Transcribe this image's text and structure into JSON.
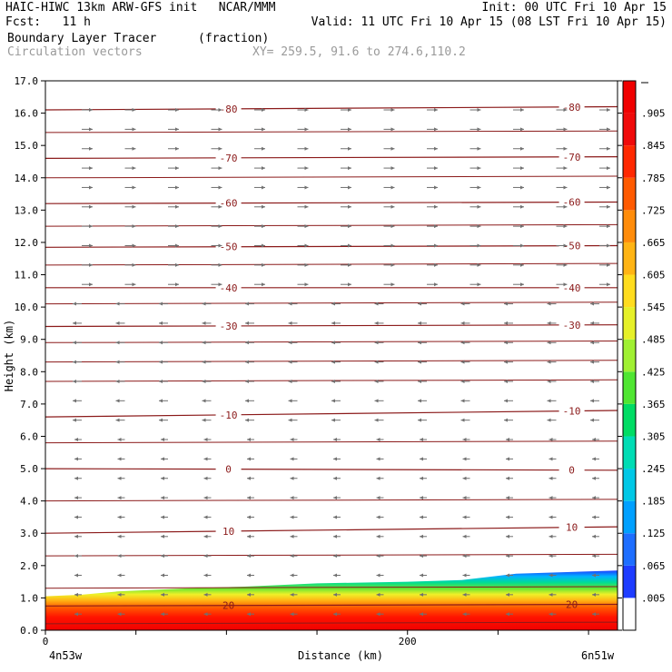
{
  "header": {
    "title": "HAIC-HIWC 13km ARW-GFS init   NCAR/MMM",
    "init": "Init: 00 UTC Fri 10 Apr 15",
    "fcst": "Fcst:   11 h",
    "valid": "Valid: 11 UTC Fri 10 Apr 15 (08 LST Fri 10 Apr 15)",
    "field": "Boundary Layer Tracer",
    "units": "(fraction)",
    "vectors": "Circulation vectors",
    "xy": "XY= 259.5, 91.6 to 274.6,110.2"
  },
  "chart_data": {
    "type": "heatmap",
    "title": "Boundary Layer Tracer",
    "units": "(fraction)",
    "xlabel": "Distance (km)",
    "ylabel": "Height (km)",
    "xlim": [
      0,
      316
    ],
    "ylim": [
      0,
      17
    ],
    "yticks": [
      "0.0",
      "1.0",
      "2.0",
      "3.0",
      "4.0",
      "5.0",
      "6.0",
      "7.0",
      "8.0",
      "9.0",
      "10.0",
      "11.0",
      "12.0",
      "13.0",
      "14.0",
      "15.0",
      "16.0",
      "17.0"
    ],
    "xticks": [
      {
        "value": 0,
        "label": "0"
      },
      {
        "value": 200,
        "label": "200"
      }
    ],
    "x_end_labels": [
      "4n53w",
      "6n51w"
    ],
    "colorbar": {
      "labels": [
        ".005",
        ".065",
        ".125",
        ".185",
        ".245",
        ".305",
        ".365",
        ".425",
        ".485",
        ".545",
        ".605",
        ".665",
        ".725",
        ".785",
        ".845",
        ".905"
      ],
      "colors": [
        "#ffffff",
        "#1e3cff",
        "#1e6eff",
        "#00a0ff",
        "#00c8e6",
        "#00dcb4",
        "#00dc64",
        "#50e632",
        "#a0f032",
        "#e6f028",
        "#ffdc1e",
        "#ffb414",
        "#ff8c0a",
        "#ff5a00",
        "#ff2800",
        "#f00a0a",
        "#f00000"
      ]
    },
    "tracer_top_km": [
      {
        "x": 0,
        "y": 1.05
      },
      {
        "x": 20,
        "y": 1.1
      },
      {
        "x": 40,
        "y": 1.2
      },
      {
        "x": 80,
        "y": 1.3
      },
      {
        "x": 110,
        "y": 1.35
      },
      {
        "x": 150,
        "y": 1.45
      },
      {
        "x": 200,
        "y": 1.5
      },
      {
        "x": 230,
        "y": 1.55
      },
      {
        "x": 260,
        "y": 1.75
      },
      {
        "x": 290,
        "y": 1.8
      },
      {
        "x": 316,
        "y": 1.85
      }
    ],
    "isotherms": [
      {
        "label": "-80",
        "y0": 16.1,
        "y1": 16.2
      },
      {
        "label": "-70",
        "y0": 14.6,
        "y1": 14.65
      },
      {
        "label": "-60",
        "y0": 13.2,
        "y1": 13.25
      },
      {
        "label": "-50",
        "y0": 11.85,
        "y1": 11.9
      },
      {
        "label": "-40",
        "y0": 10.6,
        "y1": 10.6
      },
      {
        "label": "-30",
        "y0": 9.4,
        "y1": 9.45
      },
      {
        "label": "-10",
        "y0": 6.6,
        "y1": 6.8
      },
      {
        "label": "0",
        "y0": 5.0,
        "y1": 4.95
      },
      {
        "label": "10",
        "y0": 3.0,
        "y1": 3.2
      },
      {
        "label": "20",
        "y0": 0.75,
        "y1": 0.8
      }
    ],
    "extra_contours_km": [
      15.4,
      14.0,
      12.5,
      11.3,
      10.1,
      8.9,
      8.3,
      7.7,
      5.8,
      4.0,
      2.3,
      1.3,
      0.2
    ]
  }
}
